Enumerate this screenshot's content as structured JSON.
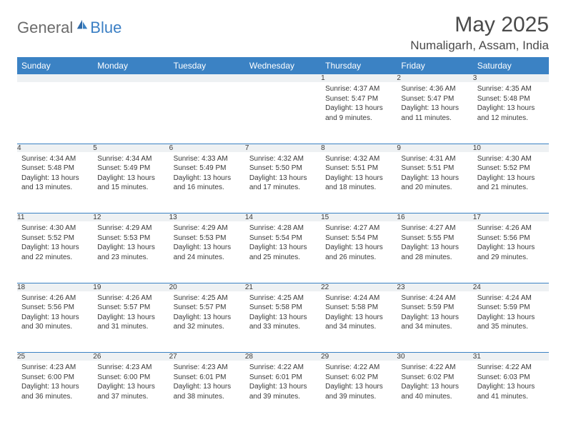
{
  "brand": {
    "part1": "General",
    "part2": "Blue"
  },
  "title": "May 2025",
  "location": "Numaligarh, Assam, India",
  "colors": {
    "header_bg": "#3b82c4",
    "header_text": "#ffffff",
    "daynum_bg": "#eef1f3",
    "border": "#3b82c4",
    "body_text": "#3a3a3a",
    "title_text": "#4a4a4a",
    "logo_gray": "#6b6b6b",
    "logo_blue": "#3b7fc4"
  },
  "weekdays": [
    "Sunday",
    "Monday",
    "Tuesday",
    "Wednesday",
    "Thursday",
    "Friday",
    "Saturday"
  ],
  "weeks": [
    [
      null,
      null,
      null,
      null,
      {
        "d": "1",
        "sr": "Sunrise: 4:37 AM",
        "ss": "Sunset: 5:47 PM",
        "dl": "Daylight: 13 hours and 9 minutes."
      },
      {
        "d": "2",
        "sr": "Sunrise: 4:36 AM",
        "ss": "Sunset: 5:47 PM",
        "dl": "Daylight: 13 hours and 11 minutes."
      },
      {
        "d": "3",
        "sr": "Sunrise: 4:35 AM",
        "ss": "Sunset: 5:48 PM",
        "dl": "Daylight: 13 hours and 12 minutes."
      }
    ],
    [
      {
        "d": "4",
        "sr": "Sunrise: 4:34 AM",
        "ss": "Sunset: 5:48 PM",
        "dl": "Daylight: 13 hours and 13 minutes."
      },
      {
        "d": "5",
        "sr": "Sunrise: 4:34 AM",
        "ss": "Sunset: 5:49 PM",
        "dl": "Daylight: 13 hours and 15 minutes."
      },
      {
        "d": "6",
        "sr": "Sunrise: 4:33 AM",
        "ss": "Sunset: 5:49 PM",
        "dl": "Daylight: 13 hours and 16 minutes."
      },
      {
        "d": "7",
        "sr": "Sunrise: 4:32 AM",
        "ss": "Sunset: 5:50 PM",
        "dl": "Daylight: 13 hours and 17 minutes."
      },
      {
        "d": "8",
        "sr": "Sunrise: 4:32 AM",
        "ss": "Sunset: 5:51 PM",
        "dl": "Daylight: 13 hours and 18 minutes."
      },
      {
        "d": "9",
        "sr": "Sunrise: 4:31 AM",
        "ss": "Sunset: 5:51 PM",
        "dl": "Daylight: 13 hours and 20 minutes."
      },
      {
        "d": "10",
        "sr": "Sunrise: 4:30 AM",
        "ss": "Sunset: 5:52 PM",
        "dl": "Daylight: 13 hours and 21 minutes."
      }
    ],
    [
      {
        "d": "11",
        "sr": "Sunrise: 4:30 AM",
        "ss": "Sunset: 5:52 PM",
        "dl": "Daylight: 13 hours and 22 minutes."
      },
      {
        "d": "12",
        "sr": "Sunrise: 4:29 AM",
        "ss": "Sunset: 5:53 PM",
        "dl": "Daylight: 13 hours and 23 minutes."
      },
      {
        "d": "13",
        "sr": "Sunrise: 4:29 AM",
        "ss": "Sunset: 5:53 PM",
        "dl": "Daylight: 13 hours and 24 minutes."
      },
      {
        "d": "14",
        "sr": "Sunrise: 4:28 AM",
        "ss": "Sunset: 5:54 PM",
        "dl": "Daylight: 13 hours and 25 minutes."
      },
      {
        "d": "15",
        "sr": "Sunrise: 4:27 AM",
        "ss": "Sunset: 5:54 PM",
        "dl": "Daylight: 13 hours and 26 minutes."
      },
      {
        "d": "16",
        "sr": "Sunrise: 4:27 AM",
        "ss": "Sunset: 5:55 PM",
        "dl": "Daylight: 13 hours and 28 minutes."
      },
      {
        "d": "17",
        "sr": "Sunrise: 4:26 AM",
        "ss": "Sunset: 5:56 PM",
        "dl": "Daylight: 13 hours and 29 minutes."
      }
    ],
    [
      {
        "d": "18",
        "sr": "Sunrise: 4:26 AM",
        "ss": "Sunset: 5:56 PM",
        "dl": "Daylight: 13 hours and 30 minutes."
      },
      {
        "d": "19",
        "sr": "Sunrise: 4:26 AM",
        "ss": "Sunset: 5:57 PM",
        "dl": "Daylight: 13 hours and 31 minutes."
      },
      {
        "d": "20",
        "sr": "Sunrise: 4:25 AM",
        "ss": "Sunset: 5:57 PM",
        "dl": "Daylight: 13 hours and 32 minutes."
      },
      {
        "d": "21",
        "sr": "Sunrise: 4:25 AM",
        "ss": "Sunset: 5:58 PM",
        "dl": "Daylight: 13 hours and 33 minutes."
      },
      {
        "d": "22",
        "sr": "Sunrise: 4:24 AM",
        "ss": "Sunset: 5:58 PM",
        "dl": "Daylight: 13 hours and 34 minutes."
      },
      {
        "d": "23",
        "sr": "Sunrise: 4:24 AM",
        "ss": "Sunset: 5:59 PM",
        "dl": "Daylight: 13 hours and 34 minutes."
      },
      {
        "d": "24",
        "sr": "Sunrise: 4:24 AM",
        "ss": "Sunset: 5:59 PM",
        "dl": "Daylight: 13 hours and 35 minutes."
      }
    ],
    [
      {
        "d": "25",
        "sr": "Sunrise: 4:23 AM",
        "ss": "Sunset: 6:00 PM",
        "dl": "Daylight: 13 hours and 36 minutes."
      },
      {
        "d": "26",
        "sr": "Sunrise: 4:23 AM",
        "ss": "Sunset: 6:00 PM",
        "dl": "Daylight: 13 hours and 37 minutes."
      },
      {
        "d": "27",
        "sr": "Sunrise: 4:23 AM",
        "ss": "Sunset: 6:01 PM",
        "dl": "Daylight: 13 hours and 38 minutes."
      },
      {
        "d": "28",
        "sr": "Sunrise: 4:22 AM",
        "ss": "Sunset: 6:01 PM",
        "dl": "Daylight: 13 hours and 39 minutes."
      },
      {
        "d": "29",
        "sr": "Sunrise: 4:22 AM",
        "ss": "Sunset: 6:02 PM",
        "dl": "Daylight: 13 hours and 39 minutes."
      },
      {
        "d": "30",
        "sr": "Sunrise: 4:22 AM",
        "ss": "Sunset: 6:02 PM",
        "dl": "Daylight: 13 hours and 40 minutes."
      },
      {
        "d": "31",
        "sr": "Sunrise: 4:22 AM",
        "ss": "Sunset: 6:03 PM",
        "dl": "Daylight: 13 hours and 41 minutes."
      }
    ]
  ]
}
